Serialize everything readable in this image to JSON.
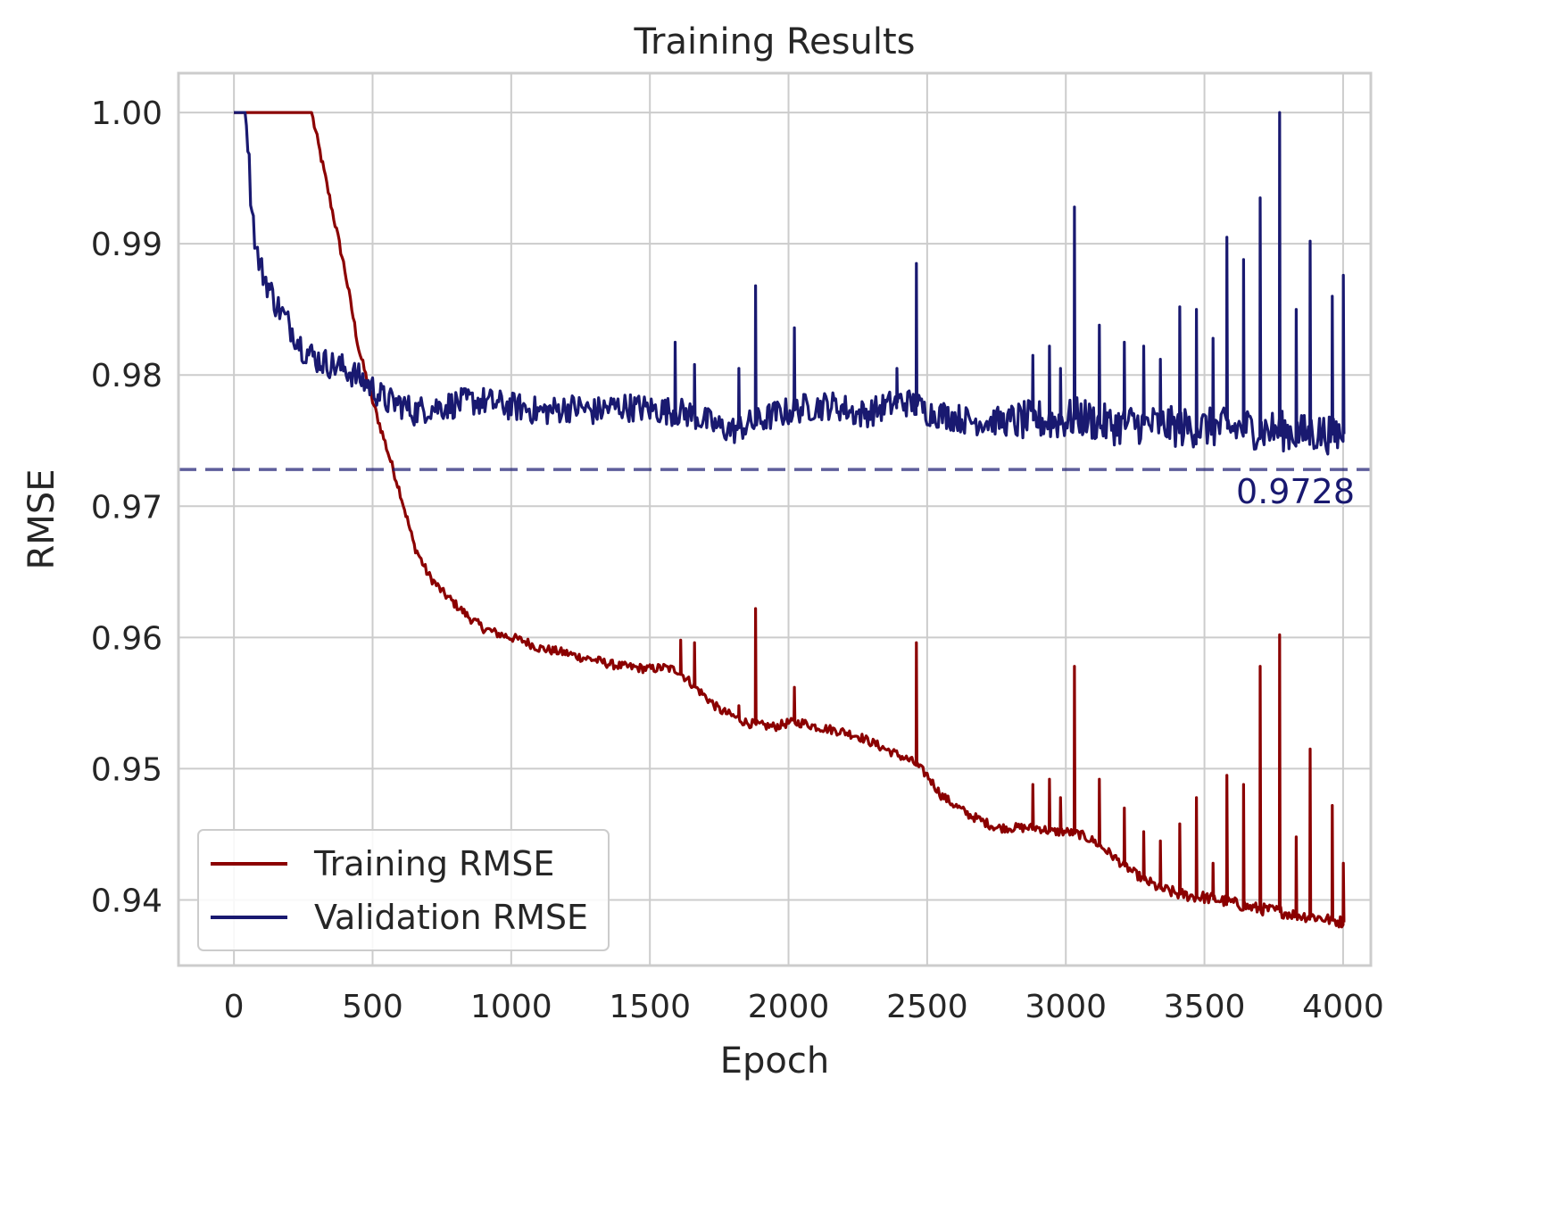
{
  "chart_data": {
    "type": "line",
    "title": "Training Results",
    "xlabel": "Epoch",
    "ylabel": "RMSE",
    "xlim": [
      -200,
      4100
    ],
    "ylim": [
      0.935,
      1.003
    ],
    "xticks": [
      0,
      500,
      1000,
      1500,
      2000,
      2500,
      3000,
      3500,
      4000
    ],
    "xtick_labels": [
      "0",
      "500",
      "1000",
      "1500",
      "2000",
      "2500",
      "3000",
      "3500",
      "4000"
    ],
    "yticks": [
      0.94,
      0.95,
      0.96,
      0.97,
      0.98,
      0.99,
      1.0
    ],
    "ytick_labels": [
      "0.94",
      "0.95",
      "0.96",
      "0.97",
      "0.98",
      "0.99",
      "1.00"
    ],
    "grid": true,
    "legend_position": "lower-left",
    "series": [
      {
        "name": "Training RMSE",
        "color": "#8b0000",
        "x": [
          0,
          50,
          100,
          150,
          200,
          250,
          280,
          300,
          350,
          400,
          450,
          500,
          550,
          600,
          650,
          700,
          750,
          800,
          850,
          900,
          950,
          1000,
          1050,
          1100,
          1150,
          1200,
          1250,
          1300,
          1350,
          1400,
          1450,
          1500,
          1550,
          1600,
          1650,
          1700,
          1750,
          1800,
          1850,
          1900,
          1950,
          2000,
          2050,
          2100,
          2150,
          2200,
          2250,
          2300,
          2350,
          2400,
          2450,
          2500,
          2550,
          2600,
          2650,
          2700,
          2750,
          2800,
          2850,
          2900,
          2950,
          3000,
          3050,
          3100,
          3150,
          3200,
          3250,
          3300,
          3350,
          3400,
          3450,
          3500,
          3550,
          3600,
          3650,
          3700,
          3750,
          3800,
          3850,
          3900,
          3950,
          4000
        ],
        "values": [
          1.0,
          1.0,
          1.0,
          1.0,
          1.0,
          1.0,
          1.0,
          0.998,
          0.993,
          0.988,
          0.982,
          0.978,
          0.9745,
          0.971,
          0.967,
          0.9648,
          0.9635,
          0.9625,
          0.9615,
          0.9607,
          0.9603,
          0.96,
          0.9597,
          0.9592,
          0.959,
          0.9588,
          0.9585,
          0.9583,
          0.958,
          0.9578,
          0.9577,
          0.9576,
          0.9577,
          0.9575,
          0.9565,
          0.9555,
          0.9545,
          0.954,
          0.9535,
          0.9533,
          0.9532,
          0.9535,
          0.9535,
          0.9532,
          0.953,
          0.9528,
          0.9525,
          0.952,
          0.9515,
          0.951,
          0.9505,
          0.9495,
          0.948,
          0.9472,
          0.9465,
          0.946,
          0.9455,
          0.9455,
          0.9455,
          0.9455,
          0.9452,
          0.9452,
          0.945,
          0.9445,
          0.9437,
          0.9428,
          0.942,
          0.9413,
          0.9408,
          0.9405,
          0.9403,
          0.9402,
          0.94,
          0.9398,
          0.9395,
          0.9393,
          0.9392,
          0.939,
          0.9388,
          0.9387,
          0.9385,
          0.9383
        ],
        "spikes": [
          [
            1610,
            0.9598
          ],
          [
            1660,
            0.9596
          ],
          [
            1820,
            0.9548
          ],
          [
            1880,
            0.9622
          ],
          [
            2020,
            0.9562
          ],
          [
            2460,
            0.9596
          ],
          [
            2880,
            0.9488
          ],
          [
            2940,
            0.9492
          ],
          [
            2980,
            0.9478
          ],
          [
            3030,
            0.9578
          ],
          [
            3120,
            0.9492
          ],
          [
            3210,
            0.947
          ],
          [
            3280,
            0.9452
          ],
          [
            3340,
            0.9445
          ],
          [
            3410,
            0.9458
          ],
          [
            3470,
            0.9478
          ],
          [
            3530,
            0.9428
          ],
          [
            3580,
            0.9495
          ],
          [
            3640,
            0.9488
          ],
          [
            3700,
            0.9578
          ],
          [
            3770,
            0.9602
          ],
          [
            3830,
            0.9448
          ],
          [
            3880,
            0.9515
          ],
          [
            3960,
            0.9472
          ],
          [
            4000,
            0.9428
          ]
        ]
      },
      {
        "name": "Validation RMSE",
        "color": "#191970",
        "x": [
          0,
          40,
          50,
          60,
          80,
          100,
          150,
          200,
          250,
          300,
          350,
          400,
          450,
          500,
          550,
          600,
          650,
          700,
          750,
          800,
          850,
          900,
          950,
          1000,
          1050,
          1100,
          1150,
          1200,
          1250,
          1300,
          1350,
          1400,
          1450,
          1500,
          1550,
          1600,
          1650,
          1700,
          1750,
          1800,
          1850,
          1900,
          1950,
          2000,
          2050,
          2100,
          2150,
          2200,
          2250,
          2300,
          2350,
          2400,
          2450,
          2500,
          2550,
          2600,
          2650,
          2700,
          2750,
          2800,
          2850,
          2900,
          2950,
          3000,
          3050,
          3100,
          3150,
          3200,
          3250,
          3300,
          3350,
          3400,
          3450,
          3500,
          3550,
          3600,
          3650,
          3700,
          3750,
          3800,
          3850,
          3900,
          3950,
          4000
        ],
        "values": [
          1.0,
          1.0,
          0.998,
          0.994,
          0.9895,
          0.988,
          0.9855,
          0.9838,
          0.982,
          0.9812,
          0.9808,
          0.9805,
          0.9798,
          0.979,
          0.978,
          0.9778,
          0.9772,
          0.9775,
          0.9776,
          0.9778,
          0.978,
          0.978,
          0.9778,
          0.9776,
          0.9775,
          0.9772,
          0.9773,
          0.9775,
          0.9775,
          0.9772,
          0.9775,
          0.9776,
          0.9775,
          0.9774,
          0.9773,
          0.9772,
          0.977,
          0.9765,
          0.976,
          0.9758,
          0.9762,
          0.9765,
          0.977,
          0.9772,
          0.9775,
          0.9776,
          0.9777,
          0.9775,
          0.977,
          0.9772,
          0.9776,
          0.978,
          0.9778,
          0.9772,
          0.977,
          0.9768,
          0.9765,
          0.9765,
          0.9765,
          0.9764,
          0.9765,
          0.9766,
          0.9765,
          0.9766,
          0.9768,
          0.9765,
          0.9762,
          0.9762,
          0.9763,
          0.9762,
          0.9762,
          0.976,
          0.976,
          0.976,
          0.976,
          0.9759,
          0.976,
          0.9758,
          0.9758,
          0.9757,
          0.9755,
          0.9756,
          0.9755,
          0.9755
        ],
        "spikes": [
          [
            1590,
            0.9825
          ],
          [
            1660,
            0.9808
          ],
          [
            1820,
            0.9805
          ],
          [
            1880,
            0.9868
          ],
          [
            2020,
            0.9836
          ],
          [
            2390,
            0.9805
          ],
          [
            2460,
            0.9885
          ],
          [
            2880,
            0.9815
          ],
          [
            2940,
            0.9822
          ],
          [
            2980,
            0.9805
          ],
          [
            3030,
            0.9928
          ],
          [
            3120,
            0.9838
          ],
          [
            3210,
            0.9825
          ],
          [
            3280,
            0.9822
          ],
          [
            3340,
            0.9812
          ],
          [
            3410,
            0.9852
          ],
          [
            3470,
            0.985
          ],
          [
            3530,
            0.9828
          ],
          [
            3580,
            0.9905
          ],
          [
            3640,
            0.9888
          ],
          [
            3700,
            0.9935
          ],
          [
            3770,
            1.0
          ],
          [
            3830,
            0.985
          ],
          [
            3880,
            0.9902
          ],
          [
            3960,
            0.986
          ],
          [
            4000,
            0.9876
          ]
        ]
      }
    ],
    "reference_line": {
      "value": 0.9728,
      "label": "0.9728",
      "color": "#191970",
      "style": "dashed"
    }
  }
}
